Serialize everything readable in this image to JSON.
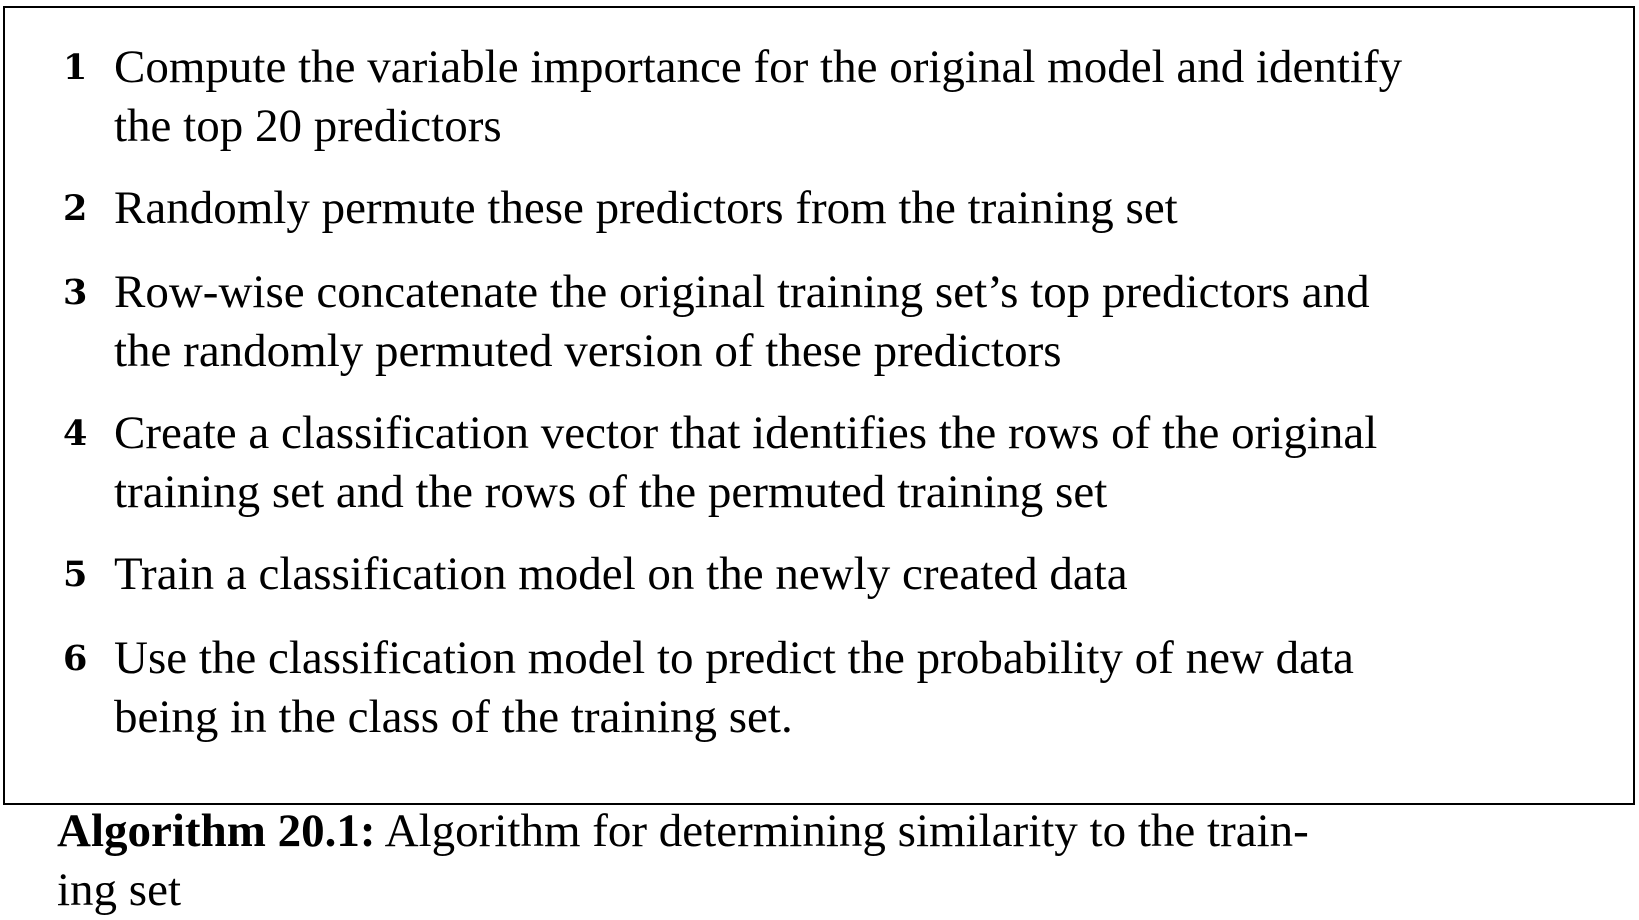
{
  "algorithm": {
    "steps": [
      {
        "number": "1",
        "text": "Compute the variable importance for the original model and identify\nthe top 20 predictors"
      },
      {
        "number": "2",
        "text": "Randomly permute these predictors from the training set"
      },
      {
        "number": "3",
        "text": "Row-wise concatenate the original training set’s top predictors and\nthe randomly permuted version of these predictors"
      },
      {
        "number": "4",
        "text": "Create a classification vector that identifies the rows of the original\ntraining set and the rows of the permuted training set"
      },
      {
        "number": "5",
        "text": "Train a classification model on the newly created data"
      },
      {
        "number": "6",
        "text": "Use the classification model to predict the probability of new data\nbeing in the class of the training set."
      }
    ],
    "caption": {
      "label": "Algorithm 20.1:",
      "text": " Algorithm for determining similarity to the train-\ning set"
    }
  }
}
